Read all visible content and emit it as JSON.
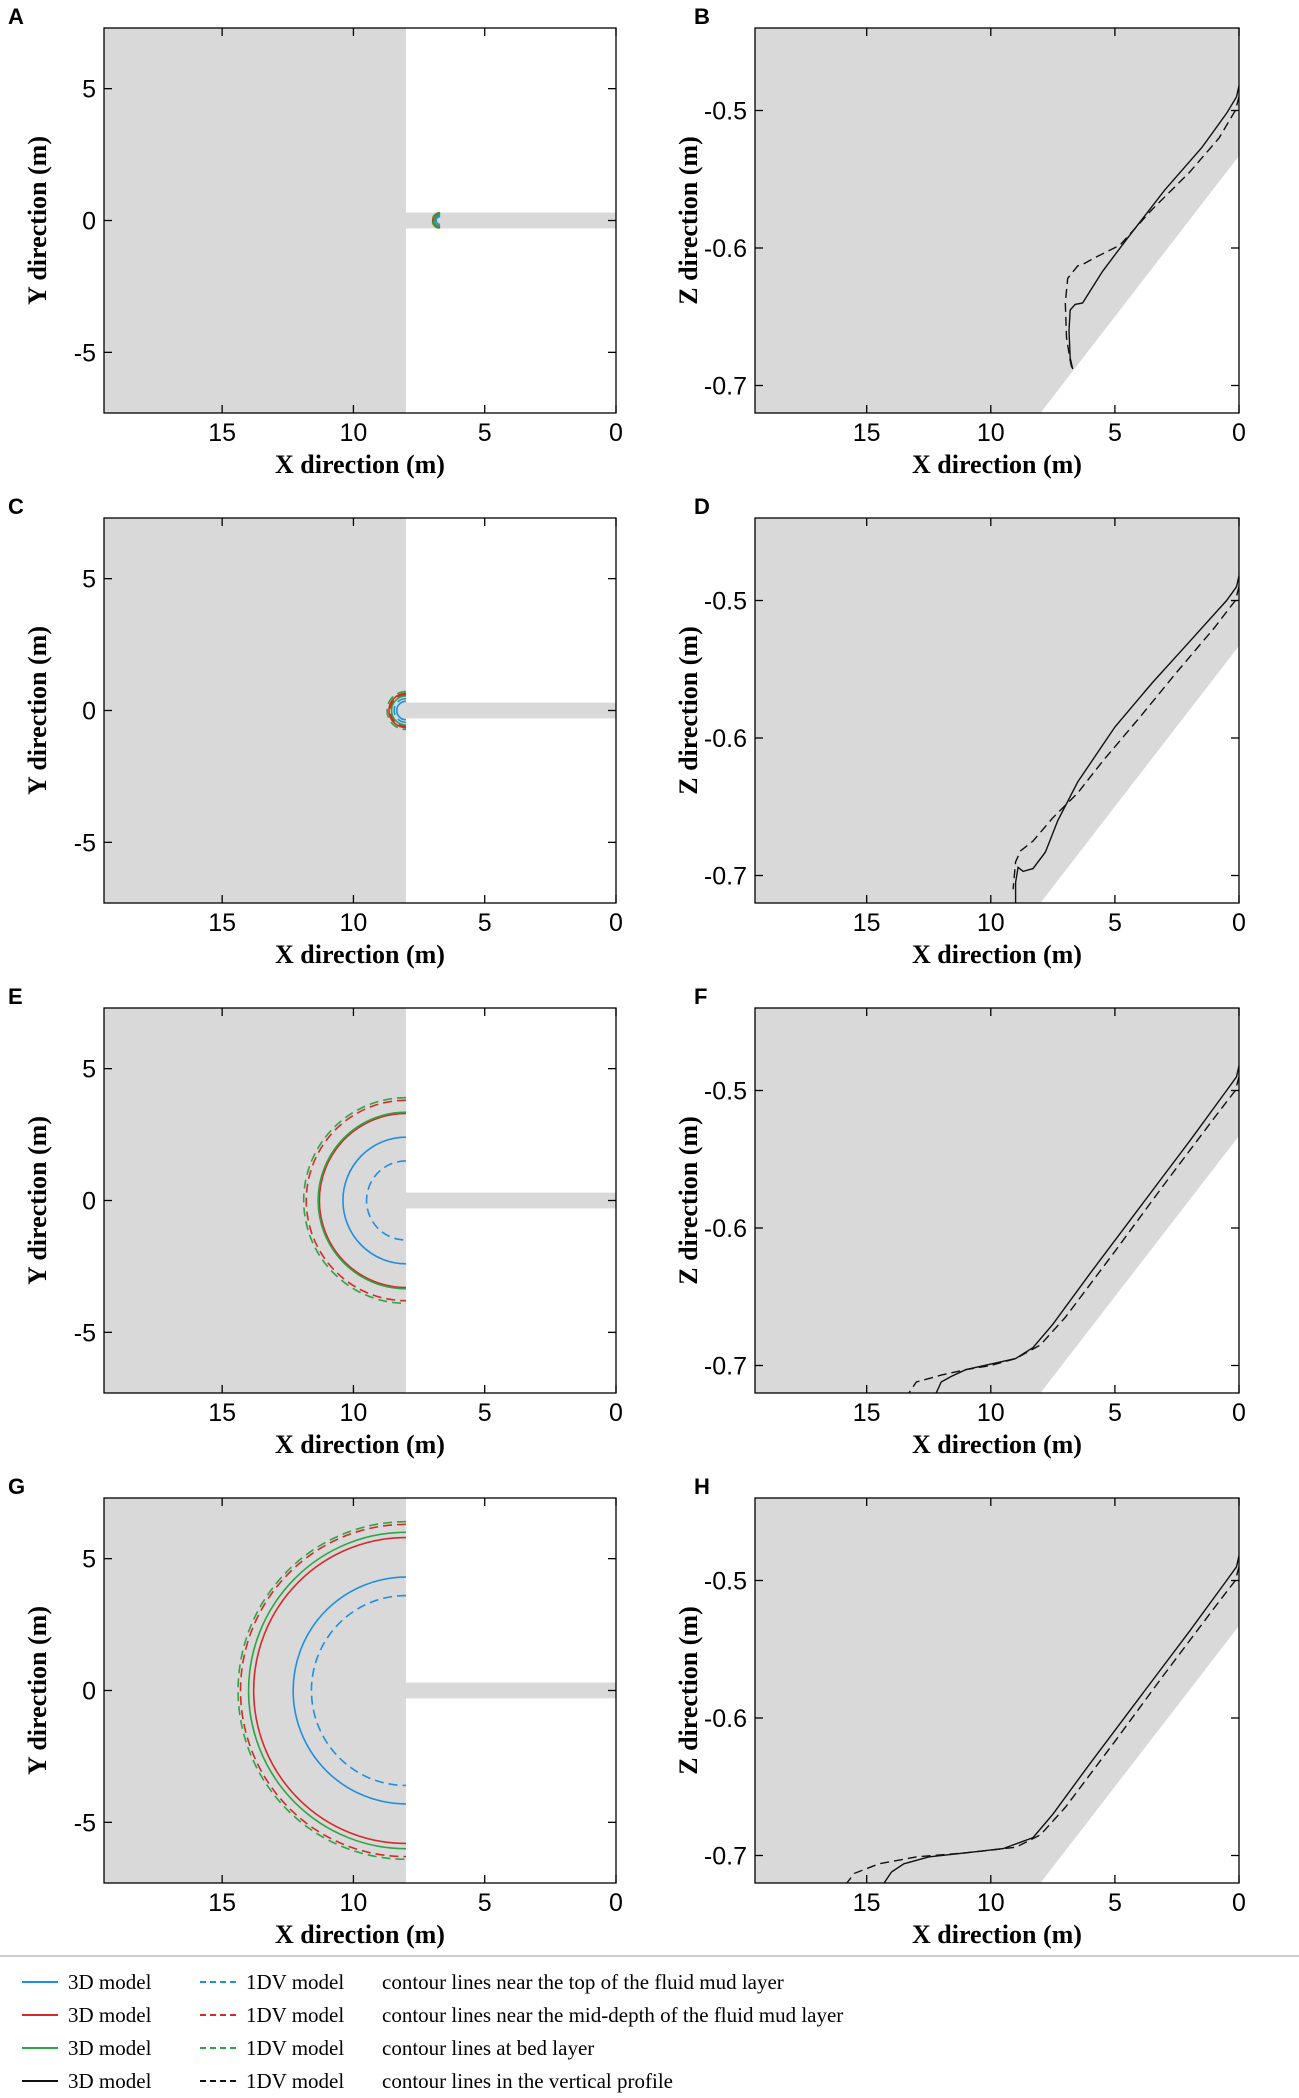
{
  "legend": {
    "rows": [
      {
        "color": "#1f8fe0",
        "solid_label": "3D model",
        "dashed_label": "1DV model",
        "description": "contour lines near the top of the fluid mud layer"
      },
      {
        "color": "#d42a2a",
        "solid_label": "3D model",
        "dashed_label": "1DV model",
        "description": "contour lines near the mid-depth of the fluid mud layer"
      },
      {
        "color": "#2ca544",
        "solid_label": "3D model",
        "dashed_label": "1DV model",
        "description": "contour lines at bed layer"
      },
      {
        "color": "#111111",
        "solid_label": "3D model",
        "dashed_label": "1DV model",
        "description": "contour lines in the vertical profile"
      }
    ]
  },
  "colors": {
    "mud": "#d9d9d9",
    "top": "#1f8fe0",
    "mid": "#d42a2a",
    "bed": "#2ca544",
    "profile": "#111111"
  },
  "chart_data": [
    {
      "panel": "A",
      "type": "contour-plan",
      "xlabel": "X direction (m)",
      "ylabel": "Y direction (m)",
      "xlim": [
        19.5,
        0
      ],
      "ylim": [
        -7.3,
        7.3
      ],
      "xticks": [
        15,
        10,
        5,
        0
      ],
      "yticks": [
        5,
        0,
        -5
      ],
      "channel": {
        "x_from": 8,
        "x_to": 0,
        "halfwidth": 0.3
      },
      "contours": [
        {
          "series": "top",
          "model": "3D",
          "r": 0.15,
          "x0": 6.7
        },
        {
          "series": "top",
          "model": "1DV",
          "r": 0.18,
          "x0": 6.7
        },
        {
          "series": "mid",
          "model": "3D",
          "r": 0.28,
          "x0": 6.7
        },
        {
          "series": "mid",
          "model": "1DV",
          "r": 0.25,
          "x0": 6.7
        },
        {
          "series": "bed",
          "model": "3D",
          "r": 0.22,
          "x0": 6.7
        },
        {
          "series": "bed",
          "model": "1DV",
          "r": 0.3,
          "x0": 6.7
        }
      ]
    },
    {
      "panel": "B",
      "type": "line-profile",
      "xlabel": "X direction (m)",
      "ylabel": "Z direction (m)",
      "xlim": [
        19.5,
        0
      ],
      "ylim": [
        -0.72,
        -0.44
      ],
      "xticks": [
        15,
        10,
        5,
        0
      ],
      "yticks": [
        -0.5,
        -0.6,
        -0.7
      ],
      "bed": {
        "x": [
          0,
          8
        ],
        "z": [
          -0.533,
          -0.72
        ]
      },
      "series": [
        {
          "model": "3D",
          "style": "solid",
          "x": [
            0,
            0.1,
            0.5,
            1.5,
            3,
            4.5,
            5.5,
            6.3,
            6.6,
            6.8,
            6.85,
            6.8,
            6.7
          ],
          "z": [
            -0.482,
            -0.49,
            -0.502,
            -0.527,
            -0.558,
            -0.593,
            -0.617,
            -0.64,
            -0.641,
            -0.645,
            -0.66,
            -0.68,
            -0.688
          ]
        },
        {
          "model": "1DV",
          "style": "dashed",
          "x": [
            0,
            0.15,
            0.8,
            2,
            3.5,
            4.8,
            5.8,
            6.3,
            6.5,
            6.9,
            7.0,
            6.95,
            6.8,
            6.7
          ],
          "z": [
            -0.49,
            -0.5,
            -0.52,
            -0.545,
            -0.572,
            -0.598,
            -0.607,
            -0.612,
            -0.613,
            -0.622,
            -0.64,
            -0.665,
            -0.682,
            -0.69
          ]
        }
      ]
    },
    {
      "panel": "C",
      "type": "contour-plan",
      "xlabel": "X direction (m)",
      "ylabel": "Y direction (m)",
      "xlim": [
        19.5,
        0
      ],
      "ylim": [
        -7.3,
        7.3
      ],
      "xticks": [
        15,
        10,
        5,
        0
      ],
      "yticks": [
        5,
        0,
        -5
      ],
      "channel": {
        "x_from": 8,
        "x_to": 0,
        "halfwidth": 0.3
      },
      "contours": [
        {
          "series": "top",
          "model": "3D",
          "r": 0.35,
          "x0": 8
        },
        {
          "series": "top",
          "model": "1DV",
          "r": 0.45,
          "x0": 8
        },
        {
          "series": "mid",
          "model": "3D",
          "r": 0.65,
          "x0": 8
        },
        {
          "series": "mid",
          "model": "1DV",
          "r": 0.6,
          "x0": 8
        },
        {
          "series": "bed",
          "model": "3D",
          "r": 0.55,
          "x0": 8
        },
        {
          "series": "bed",
          "model": "1DV",
          "r": 0.72,
          "x0": 8
        }
      ]
    },
    {
      "panel": "D",
      "type": "line-profile",
      "xlabel": "X direction (m)",
      "ylabel": "Z direction (m)",
      "xlim": [
        19.5,
        0
      ],
      "ylim": [
        -0.72,
        -0.44
      ],
      "xticks": [
        15,
        10,
        5,
        0
      ],
      "yticks": [
        -0.5,
        -0.6,
        -0.7
      ],
      "bed": {
        "x": [
          0,
          8
        ],
        "z": [
          -0.533,
          -0.72
        ]
      },
      "series": [
        {
          "model": "3D",
          "style": "solid",
          "x": [
            0,
            0.1,
            0.5,
            2,
            3.5,
            5,
            6.5,
            7.3,
            7.8,
            8.3,
            8.7,
            8.9,
            9.0,
            9.0
          ],
          "z": [
            -0.482,
            -0.49,
            -0.5,
            -0.53,
            -0.56,
            -0.592,
            -0.632,
            -0.66,
            -0.683,
            -0.695,
            -0.697,
            -0.694,
            -0.705,
            -0.72
          ]
        },
        {
          "model": "1DV",
          "style": "dashed",
          "x": [
            0,
            0.15,
            1,
            2.5,
            4,
            5.5,
            6.5,
            7.5,
            8.3,
            8.8,
            9.0,
            9.1
          ],
          "z": [
            -0.49,
            -0.5,
            -0.52,
            -0.552,
            -0.585,
            -0.617,
            -0.64,
            -0.658,
            -0.675,
            -0.682,
            -0.69,
            -0.71
          ]
        }
      ]
    },
    {
      "panel": "E",
      "type": "contour-plan",
      "xlabel": "X direction (m)",
      "ylabel": "Y direction (m)",
      "xlim": [
        19.5,
        0
      ],
      "ylim": [
        -7.3,
        7.3
      ],
      "xticks": [
        15,
        10,
        5,
        0
      ],
      "yticks": [
        5,
        0,
        -5
      ],
      "channel": {
        "x_from": 8,
        "x_to": 0,
        "halfwidth": 0.3
      },
      "contours": [
        {
          "series": "top",
          "model": "3D",
          "r": 2.4,
          "x0": 8
        },
        {
          "series": "top",
          "model": "1DV",
          "r": 1.5,
          "x0": 8
        },
        {
          "series": "mid",
          "model": "3D",
          "r": 3.3,
          "x0": 8
        },
        {
          "series": "mid",
          "model": "1DV",
          "r": 3.8,
          "x0": 8
        },
        {
          "series": "bed",
          "model": "3D",
          "r": 3.35,
          "x0": 8
        },
        {
          "series": "bed",
          "model": "1DV",
          "r": 3.9,
          "x0": 8
        }
      ]
    },
    {
      "panel": "F",
      "type": "line-profile",
      "xlabel": "X direction (m)",
      "ylabel": "Z direction (m)",
      "xlim": [
        19.5,
        0
      ],
      "ylim": [
        -0.72,
        -0.44
      ],
      "xticks": [
        15,
        10,
        5,
        0
      ],
      "yticks": [
        -0.5,
        -0.6,
        -0.7
      ],
      "bed": {
        "x": [
          0,
          8
        ],
        "z": [
          -0.533,
          -0.72
        ]
      },
      "series": [
        {
          "model": "3D",
          "style": "solid",
          "x": [
            0,
            0.1,
            0.5,
            2,
            4,
            6,
            7.5,
            8.3,
            9.0,
            10,
            11,
            11.6,
            12,
            12.2
          ],
          "z": [
            -0.482,
            -0.49,
            -0.5,
            -0.537,
            -0.585,
            -0.633,
            -0.67,
            -0.687,
            -0.695,
            -0.699,
            -0.703,
            -0.708,
            -0.712,
            -0.72
          ]
        },
        {
          "model": "1DV",
          "style": "dashed",
          "x": [
            0,
            0.15,
            1,
            3,
            5,
            7,
            8,
            9,
            10,
            11,
            12,
            13,
            13.3
          ],
          "z": [
            -0.49,
            -0.5,
            -0.52,
            -0.568,
            -0.617,
            -0.665,
            -0.685,
            -0.695,
            -0.7,
            -0.703,
            -0.707,
            -0.712,
            -0.72
          ]
        }
      ]
    },
    {
      "panel": "G",
      "type": "contour-plan",
      "xlabel": "X direction (m)",
      "ylabel": "Y direction (m)",
      "xlim": [
        19.5,
        0
      ],
      "ylim": [
        -7.3,
        7.3
      ],
      "xticks": [
        15,
        10,
        5,
        0
      ],
      "yticks": [
        5,
        0,
        -5
      ],
      "channel": {
        "x_from": 8,
        "x_to": 0,
        "halfwidth": 0.3
      },
      "contours": [
        {
          "series": "top",
          "model": "3D",
          "r": 4.3,
          "x0": 8
        },
        {
          "series": "top",
          "model": "1DV",
          "r": 3.6,
          "x0": 8
        },
        {
          "series": "mid",
          "model": "3D",
          "r": 5.8,
          "x0": 8
        },
        {
          "series": "mid",
          "model": "1DV",
          "r": 6.3,
          "x0": 8
        },
        {
          "series": "bed",
          "model": "3D",
          "r": 6.0,
          "x0": 8
        },
        {
          "series": "bed",
          "model": "1DV",
          "r": 6.4,
          "x0": 8
        }
      ]
    },
    {
      "panel": "H",
      "type": "line-profile",
      "xlabel": "X direction (m)",
      "ylabel": "Z direction (m)",
      "xlim": [
        19.5,
        0
      ],
      "ylim": [
        -0.72,
        -0.44
      ],
      "xticks": [
        15,
        10,
        5,
        0
      ],
      "yticks": [
        -0.5,
        -0.6,
        -0.7
      ],
      "bed": {
        "x": [
          0,
          8
        ],
        "z": [
          -0.533,
          -0.72
        ]
      },
      "series": [
        {
          "model": "3D",
          "style": "solid",
          "x": [
            0,
            0.1,
            0.5,
            2,
            4,
            6,
            7.5,
            8.3,
            9.5,
            11,
            12.5,
            13.5,
            14,
            14.3
          ],
          "z": [
            -0.482,
            -0.49,
            -0.5,
            -0.537,
            -0.585,
            -0.633,
            -0.67,
            -0.687,
            -0.695,
            -0.698,
            -0.701,
            -0.706,
            -0.712,
            -0.72
          ]
        },
        {
          "model": "1DV",
          "style": "dashed",
          "x": [
            0,
            0.15,
            1,
            3,
            5,
            7,
            8,
            9,
            11,
            13,
            14.5,
            15.5,
            15.8
          ],
          "z": [
            -0.49,
            -0.5,
            -0.52,
            -0.568,
            -0.617,
            -0.665,
            -0.685,
            -0.694,
            -0.698,
            -0.701,
            -0.706,
            -0.713,
            -0.72
          ]
        }
      ]
    }
  ]
}
